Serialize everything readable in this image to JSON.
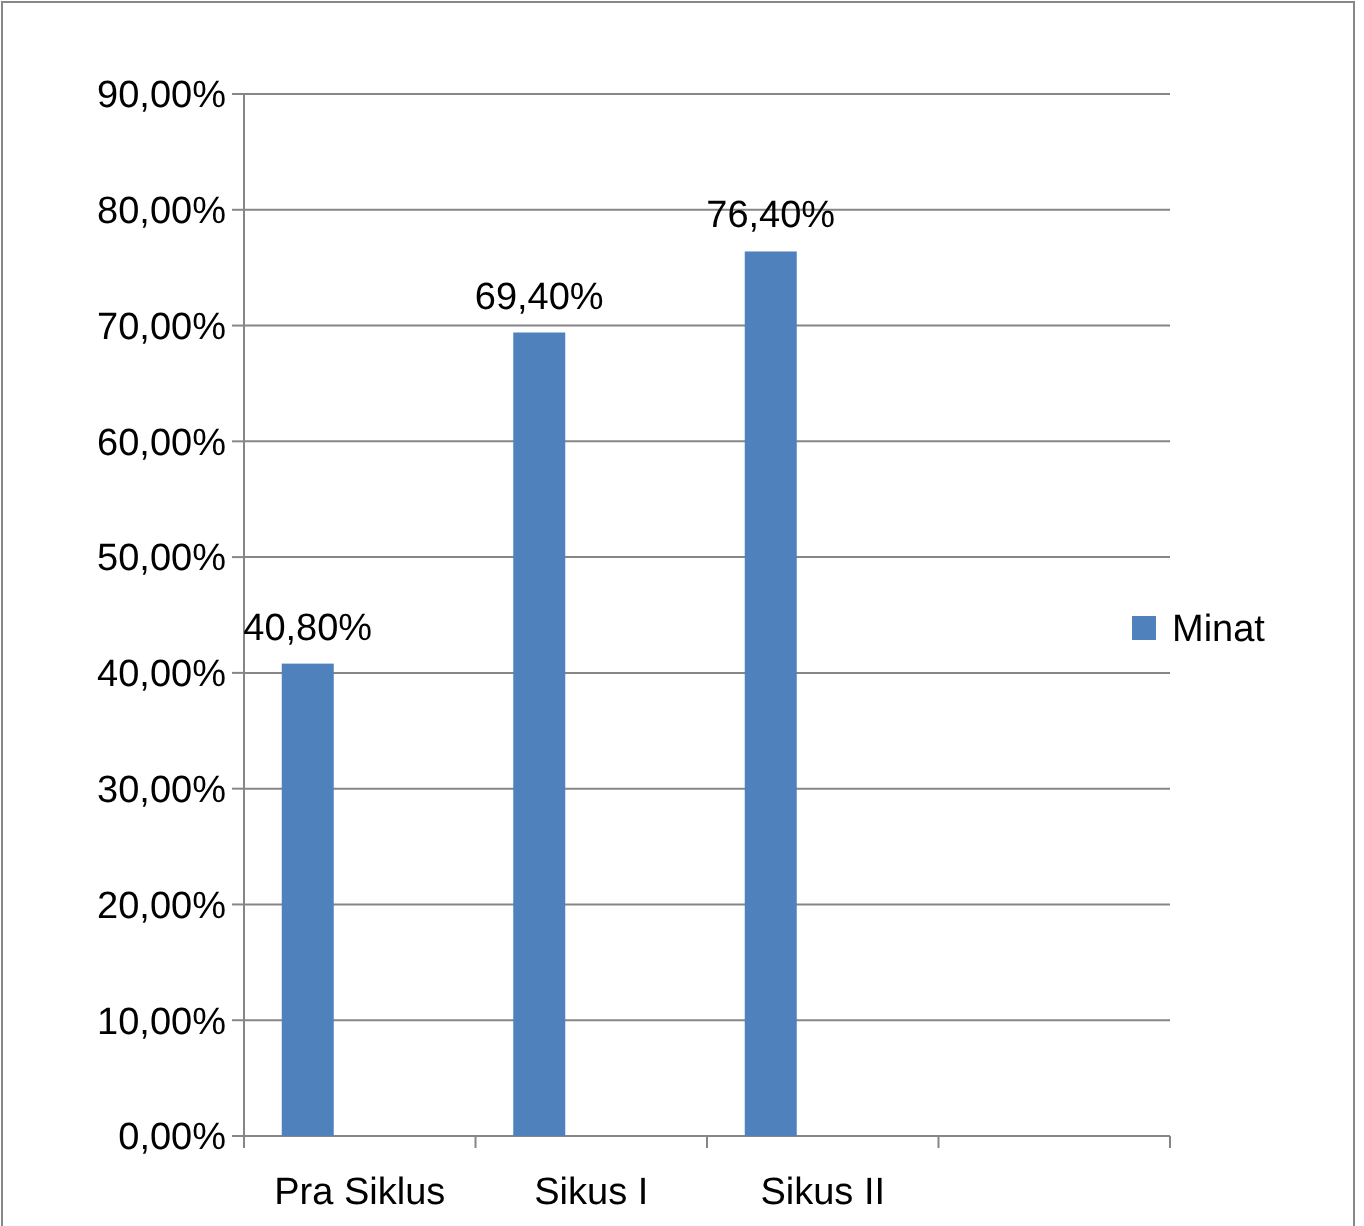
{
  "chart_data": {
    "type": "bar",
    "categories": [
      "Pra Siklus",
      "Sikus I",
      "Sikus II",
      null
    ],
    "series": [
      {
        "name": "Minat",
        "color": "#4f81bd",
        "values": [
          40.8,
          69.4,
          76.4,
          null
        ],
        "value_labels": [
          "40,80%",
          "69,40%",
          "76,40%",
          null
        ]
      }
    ],
    "ylim": [
      0,
      90
    ],
    "yticks": [
      {
        "value": 0,
        "label": "0,00%"
      },
      {
        "value": 10,
        "label": "10,00%"
      },
      {
        "value": 20,
        "label": "20,00%"
      },
      {
        "value": 30,
        "label": "30,00%"
      },
      {
        "value": 40,
        "label": "40,00%"
      },
      {
        "value": 50,
        "label": "50,00%"
      },
      {
        "value": 60,
        "label": "60,00%"
      },
      {
        "value": 70,
        "label": "70,00%"
      },
      {
        "value": 80,
        "label": "80,00%"
      },
      {
        "value": 90,
        "label": "90,00%"
      }
    ],
    "grid": "y",
    "legend": "right"
  }
}
